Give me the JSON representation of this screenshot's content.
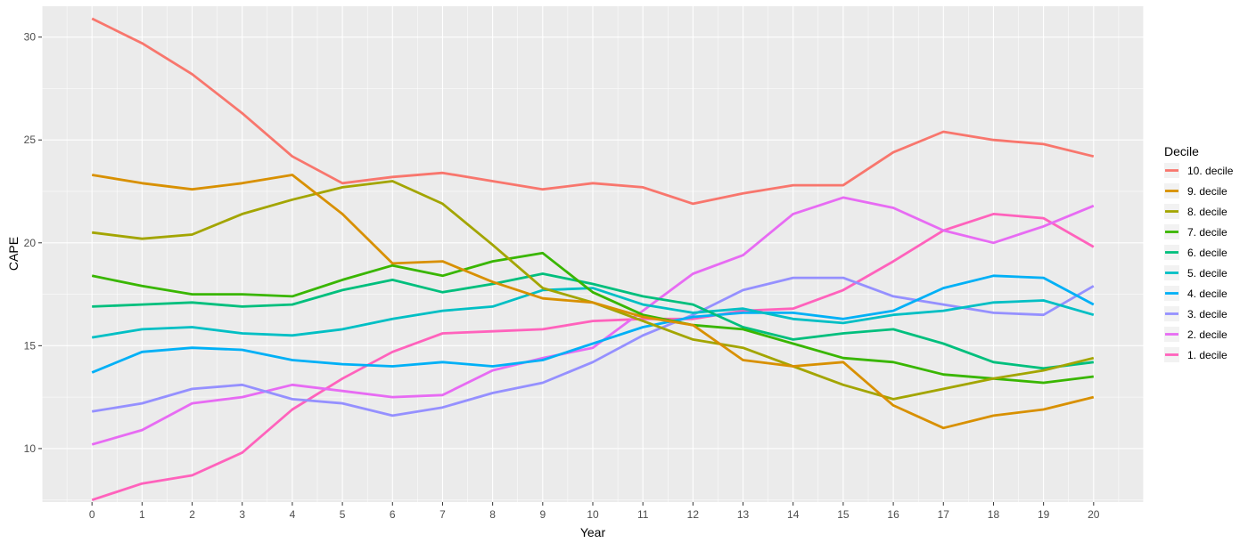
{
  "chart_data": {
    "type": "line",
    "xlabel": "Year",
    "ylabel": "CAPE",
    "x": [
      0,
      1,
      2,
      3,
      4,
      5,
      6,
      7,
      8,
      9,
      10,
      11,
      12,
      13,
      14,
      15,
      16,
      17,
      18,
      19,
      20
    ],
    "xlim": [
      -1,
      21
    ],
    "ylim": [
      7.4,
      31.5
    ],
    "y_ticks": [
      10,
      15,
      20,
      25,
      30
    ],
    "grid": true,
    "legend_title": "Decile",
    "legend_position": "right",
    "series": [
      {
        "name": "10. decile",
        "color": "#F8766D",
        "values": [
          30.9,
          29.7,
          28.2,
          26.3,
          24.2,
          22.9,
          23.2,
          23.4,
          23.0,
          22.6,
          22.9,
          22.7,
          21.9,
          22.4,
          22.8,
          22.8,
          24.4,
          25.4,
          25.0,
          24.8,
          24.2
        ]
      },
      {
        "name": "9. decile",
        "color": "#D89000",
        "values": [
          23.3,
          22.9,
          22.6,
          22.9,
          23.3,
          21.4,
          19.0,
          19.1,
          18.1,
          17.3,
          17.1,
          16.4,
          16.0,
          14.3,
          14.0,
          14.2,
          12.1,
          11.0,
          11.6,
          11.9,
          12.5
        ]
      },
      {
        "name": "8. decile",
        "color": "#A3A500",
        "values": [
          20.5,
          20.2,
          20.4,
          21.4,
          22.1,
          22.7,
          23.0,
          21.9,
          19.9,
          17.8,
          17.1,
          16.2,
          15.3,
          14.9,
          14.0,
          13.1,
          12.4,
          12.9,
          13.4,
          13.8,
          14.4
        ]
      },
      {
        "name": "7. decile",
        "color": "#39B600",
        "values": [
          18.4,
          17.9,
          17.5,
          17.5,
          17.4,
          18.2,
          18.9,
          18.4,
          19.1,
          19.5,
          17.6,
          16.5,
          16.0,
          15.8,
          15.1,
          14.4,
          14.2,
          13.6,
          13.4,
          13.2,
          13.5
        ]
      },
      {
        "name": "6. decile",
        "color": "#00BF7D",
        "values": [
          16.9,
          17.0,
          17.1,
          16.9,
          17.0,
          17.7,
          18.2,
          17.6,
          18.0,
          18.5,
          18.0,
          17.4,
          17.0,
          15.9,
          15.3,
          15.6,
          15.8,
          15.1,
          14.2,
          13.9,
          14.2
        ]
      },
      {
        "name": "5. decile",
        "color": "#00BFC4",
        "values": [
          15.4,
          15.8,
          15.9,
          15.6,
          15.5,
          15.8,
          16.3,
          16.7,
          16.9,
          17.7,
          17.8,
          17.0,
          16.6,
          16.8,
          16.3,
          16.1,
          16.5,
          16.7,
          17.1,
          17.2,
          16.5
        ]
      },
      {
        "name": "4. decile",
        "color": "#00B0F6",
        "values": [
          13.7,
          14.7,
          14.9,
          14.8,
          14.3,
          14.1,
          14.0,
          14.2,
          14.0,
          14.3,
          15.1,
          15.9,
          16.4,
          16.6,
          16.6,
          16.3,
          16.7,
          17.8,
          18.4,
          18.3,
          17.0
        ]
      },
      {
        "name": "3. decile",
        "color": "#9590FF",
        "values": [
          11.8,
          12.2,
          12.9,
          13.1,
          12.4,
          12.2,
          11.6,
          12.0,
          12.7,
          13.2,
          14.2,
          15.5,
          16.5,
          17.7,
          18.3,
          18.3,
          17.4,
          17.0,
          16.6,
          16.5,
          17.9
        ]
      },
      {
        "name": "2. decile",
        "color": "#E76BF3",
        "values": [
          10.2,
          10.9,
          12.2,
          12.5,
          13.1,
          12.8,
          12.5,
          12.6,
          13.8,
          14.4,
          14.9,
          16.7,
          18.5,
          19.4,
          21.4,
          22.2,
          21.7,
          20.6,
          20.0,
          20.8,
          21.8
        ]
      },
      {
        "name": "1. decile",
        "color": "#FF62BC",
        "values": [
          7.5,
          8.3,
          8.7,
          9.8,
          11.9,
          13.4,
          14.7,
          15.6,
          15.7,
          15.8,
          16.2,
          16.3,
          16.3,
          16.7,
          16.8,
          17.7,
          19.1,
          20.6,
          21.4,
          21.2,
          19.8
        ]
      }
    ]
  }
}
